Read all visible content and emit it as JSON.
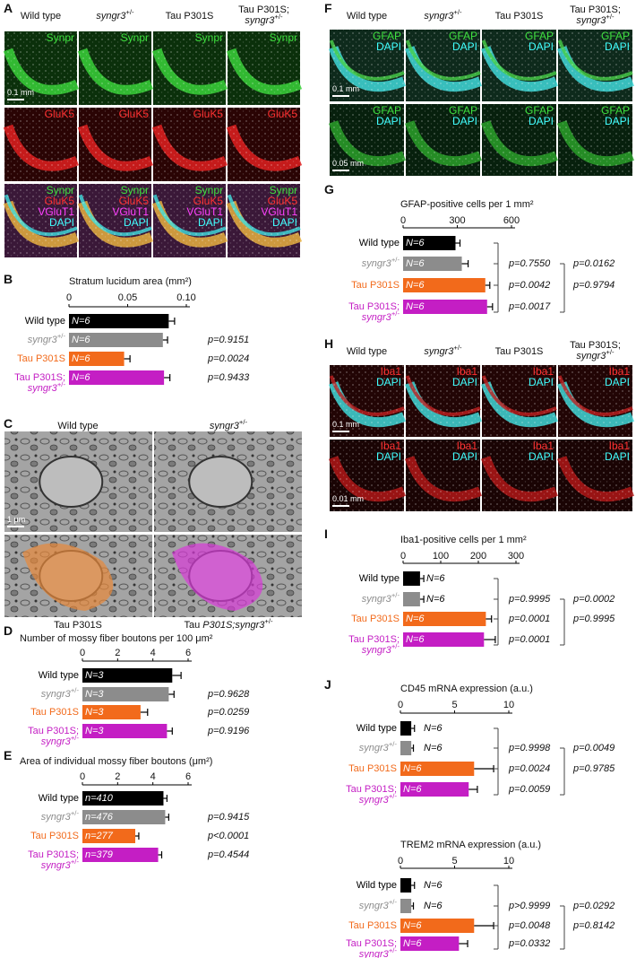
{
  "panel_letters": [
    "A",
    "B",
    "C",
    "D",
    "E",
    "F",
    "G",
    "H",
    "I",
    "J"
  ],
  "panel_A": {
    "columns": [
      "Wild type",
      "syngr3+/-",
      "Tau P301S",
      "Tau P301S; syngr3+/-"
    ],
    "rows": [
      [
        {
          "label": "Synpr",
          "color": "#3ee03e"
        }
      ],
      [
        {
          "label": "GluK5",
          "color": "#ff3030"
        }
      ],
      [
        {
          "label": "Synpr",
          "color": "#3ee03e"
        },
        {
          "label": "GluK5",
          "color": "#ff3030"
        },
        {
          "label": "VGluT1",
          "color": "#ff40ff"
        },
        {
          "label": "DAPI",
          "color": "#40ffff"
        }
      ]
    ],
    "scale_bar": "0.1 mm"
  },
  "panel_C": {
    "labels": [
      "Wild type",
      "syngr3+/-",
      "Tau P301S",
      "Tau P301S;syngr3+/-"
    ],
    "scale_bar": "1 μm"
  },
  "panel_F": {
    "columns": [
      "Wild type",
      "syngr3+/-",
      "Tau P301S",
      "Tau P301S; syngr3+/-"
    ],
    "rows": [
      [
        {
          "label": "GFAP",
          "color": "#3ee03e"
        },
        {
          "label": "DAPI",
          "color": "#40ffff"
        }
      ],
      [
        {
          "label": "GFAP",
          "color": "#3ee03e"
        },
        {
          "label": "DAPI",
          "color": "#40ffff"
        }
      ]
    ],
    "scale_bars": [
      "0.1 mm",
      "0.05 mm"
    ]
  },
  "panel_H": {
    "columns": [
      "Wild type",
      "syngr3+/-",
      "Tau P301S",
      "Tau P301S; syngr3+/-"
    ],
    "rows": [
      [
        {
          "label": "Iba1",
          "color": "#ff3030"
        },
        {
          "label": "DAPI",
          "color": "#40ffff"
        }
      ],
      [
        {
          "label": "Iba1",
          "color": "#ff3030"
        },
        {
          "label": "DAPI",
          "color": "#40ffff"
        }
      ]
    ],
    "scale_bars": [
      "0.1 mm",
      "0.01 mm"
    ]
  },
  "chart_data": [
    {
      "type": "hbar",
      "title": "Stratum lucidum area (mm²)",
      "categories": [
        "Wild type",
        "syngr3+/-",
        "Tau P301S",
        "Tau P301S; syngr3+/-"
      ],
      "colors": [
        "#000000",
        "#8c8c8c",
        "#f26a1b",
        "#c41ec4"
      ],
      "values": [
        0.085,
        0.08,
        0.047,
        0.081
      ],
      "errors": [
        0.005,
        0.004,
        0.005,
        0.005
      ],
      "bar_labels": [
        "N=6",
        "N=6",
        "N=6",
        "N=6"
      ],
      "p_values": [
        "p=0.9151",
        "p=0.0024",
        "p=0.9433"
      ],
      "xlim": [
        0,
        0.1
      ],
      "xticks": [
        0,
        0.05,
        {
          "value": 0.1,
          "label": "0.10"
        }
      ]
    },
    {
      "type": "hbar",
      "title": "Number of mossy fiber boutons per 100 μm²",
      "categories": [
        "Wild type",
        "syngr3+/-",
        "Tau P301S",
        "Tau P301S; syngr3+/-"
      ],
      "colors": [
        "#000000",
        "#8c8c8c",
        "#f26a1b",
        "#c41ec4"
      ],
      "values": [
        5.1,
        4.9,
        3.3,
        4.8
      ],
      "errors": [
        0.5,
        0.3,
        0.4,
        0.3
      ],
      "bar_labels": [
        "N=3",
        "N=3",
        "N=3",
        "N=3"
      ],
      "p_values": [
        "p=0.9628",
        "p=0.0259",
        "p=0.9196"
      ],
      "xlim": [
        0,
        6
      ],
      "xticks": [
        0,
        2,
        4,
        6
      ]
    },
    {
      "type": "hbar",
      "title": "Area of individual mossy fiber boutons (μm²)",
      "categories": [
        "Wild type",
        "syngr3+/-",
        "Tau P301S",
        "Tau P301S; syngr3+/-"
      ],
      "colors": [
        "#000000",
        "#8c8c8c",
        "#f26a1b",
        "#c41ec4"
      ],
      "values": [
        4.6,
        4.7,
        3.0,
        4.3
      ],
      "errors": [
        0.2,
        0.2,
        0.2,
        0.2
      ],
      "bar_labels": [
        "n=410",
        "n=476",
        "n=277",
        "n=379"
      ],
      "p_values": [
        "p=0.9415",
        "p<0.0001",
        "p=0.4544"
      ],
      "xlim": [
        0,
        6
      ],
      "xticks": [
        0,
        2,
        4,
        6
      ]
    },
    {
      "type": "hbar",
      "title": "GFAP-positive cells per 1 mm²",
      "categories": [
        "Wild type",
        "syngr3+/-",
        "Tau P301S",
        "Tau P301S; syngr3+/-"
      ],
      "colors": [
        "#000000",
        "#8c8c8c",
        "#f26a1b",
        "#c41ec4"
      ],
      "values": [
        290,
        325,
        455,
        465
      ],
      "errors": [
        25,
        35,
        25,
        30
      ],
      "bar_labels": [
        "N=6",
        "N=6",
        "N=6",
        "N=6"
      ],
      "p_values": [
        "p=0.7550",
        "p=0.0042",
        "p=0.0017"
      ],
      "p_values_2": [
        "p=0.0162",
        "p=0.9794"
      ],
      "xlim": [
        0,
        600
      ],
      "xticks": [
        0,
        300,
        600
      ]
    },
    {
      "type": "hbar",
      "title": "Iba1-positive cells per 1 mm²",
      "categories": [
        "Wild type",
        "syngr3+/-",
        "Tau P301S",
        "Tau P301S; syngr3+/-"
      ],
      "colors": [
        "#000000",
        "#8c8c8c",
        "#f26a1b",
        "#c41ec4"
      ],
      "values": [
        45,
        45,
        220,
        215
      ],
      "errors": [
        10,
        10,
        15,
        30
      ],
      "bar_labels": [
        "N=6",
        "N=6",
        "N=6",
        "N=6"
      ],
      "p_values": [
        "p=0.9995",
        "p=0.0001",
        "p=0.0001"
      ],
      "p_values_2": [
        "p=0.0002",
        "p=0.9995"
      ],
      "xlim": [
        0,
        300
      ],
      "xticks": [
        0,
        100,
        200,
        300
      ]
    },
    {
      "type": "hbar",
      "title": "CD45 mRNA expression  (a.u.)",
      "categories": [
        "Wild type",
        "syngr3+/-",
        "Tau P301S",
        "Tau P301S; syngr3+/-"
      ],
      "colors": [
        "#000000",
        "#8c8c8c",
        "#f26a1b",
        "#c41ec4"
      ],
      "values": [
        1,
        1,
        6.8,
        6.3
      ],
      "errors": [
        0.3,
        0.2,
        1.8,
        0.8
      ],
      "bar_labels": [
        "N=6",
        "N=6",
        "N=6",
        "N=6"
      ],
      "p_values": [
        "p=0.9998",
        "p=0.0024",
        "p=0.0059"
      ],
      "p_values_2": [
        "p=0.0049",
        "p=0.9785"
      ],
      "xlim": [
        0,
        10
      ],
      "xticks": [
        0,
        5,
        10
      ]
    },
    {
      "type": "hbar",
      "title": "TREM2 mRNA expression  (a.u.)",
      "categories": [
        "Wild type",
        "syngr3+/-",
        "Tau P301S",
        "Tau P301S; syngr3+/-"
      ],
      "colors": [
        "#000000",
        "#8c8c8c",
        "#f26a1b",
        "#c41ec4"
      ],
      "values": [
        1,
        1,
        6.8,
        5.4
      ],
      "errors": [
        0.3,
        0.2,
        1.8,
        0.8
      ],
      "bar_labels": [
        "N=6",
        "N=6",
        "N=6",
        "N=6"
      ],
      "p_values": [
        "p>0.9999",
        "p=0.0048",
        "p=0.0332"
      ],
      "p_values_2": [
        "p=0.0292",
        "p=0.8142"
      ],
      "xlim": [
        0,
        10
      ],
      "xticks": [
        0,
        5,
        10
      ]
    }
  ]
}
